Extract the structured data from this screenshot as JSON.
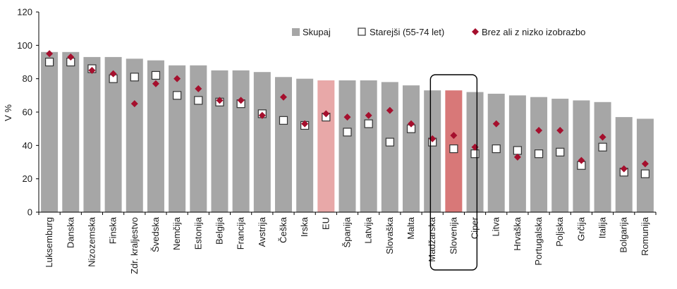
{
  "chart_data": {
    "type": "bar",
    "ylabel": "V %",
    "ylim": [
      0,
      120
    ],
    "yticks": [
      0,
      20,
      40,
      60,
      80,
      100,
      120
    ],
    "grid": false,
    "legend_position": "top-right",
    "categories": [
      "Luksemburg",
      "Danska",
      "Nizozemska",
      "Finska",
      "Zdr. kraljestvo",
      "Švedska",
      "Nemčija",
      "Estonija",
      "Belgija",
      "Francija",
      "Avstrija",
      "Češka",
      "Irska",
      "EU",
      "Španija",
      "Latvija",
      "Slovaška",
      "Malta",
      "Madžarska",
      "Slovenija",
      "Ciper",
      "Litva",
      "Hrvaška",
      "Portugalska",
      "Poljska",
      "Grčija",
      "Italija",
      "Bolgarija",
      "Romunija"
    ],
    "highlight_categories": [
      "EU",
      "Slovenija"
    ],
    "boxed_category": "Slovenija",
    "colors": {
      "bar": "#a6a6a6",
      "bar_eu": "#e8a8a8",
      "bar_slovenia": "#d87878",
      "marker_square_fill": "#ffffff",
      "marker_square_stroke": "#333333",
      "marker_diamond": "#a50f2d",
      "frame": "#000000"
    },
    "series": [
      {
        "name": "Skupaj",
        "kind": "bar",
        "values": [
          96,
          96,
          93,
          93,
          92,
          91,
          88,
          88,
          85,
          85,
          84,
          81,
          80,
          79,
          79,
          79,
          78,
          76,
          73,
          73,
          72,
          71,
          70,
          69,
          68,
          67,
          66,
          57,
          56
        ]
      },
      {
        "name": "Starejši (55-74 let)",
        "kind": "square",
        "values": [
          90,
          90,
          86,
          80,
          81,
          82,
          70,
          67,
          66,
          65,
          59,
          55,
          52,
          57,
          48,
          53,
          42,
          50,
          42,
          38,
          35,
          38,
          37,
          35,
          36,
          28,
          39,
          24,
          23
        ]
      },
      {
        "name": "Brez ali z nizko izobrazbo",
        "kind": "diamond",
        "values": [
          95,
          93,
          85,
          83,
          65,
          77,
          80,
          74,
          67,
          67,
          58,
          69,
          53,
          59,
          57,
          58,
          61,
          53,
          44,
          46,
          39,
          53,
          33,
          49,
          49,
          31,
          45,
          26,
          29
        ]
      }
    ]
  }
}
